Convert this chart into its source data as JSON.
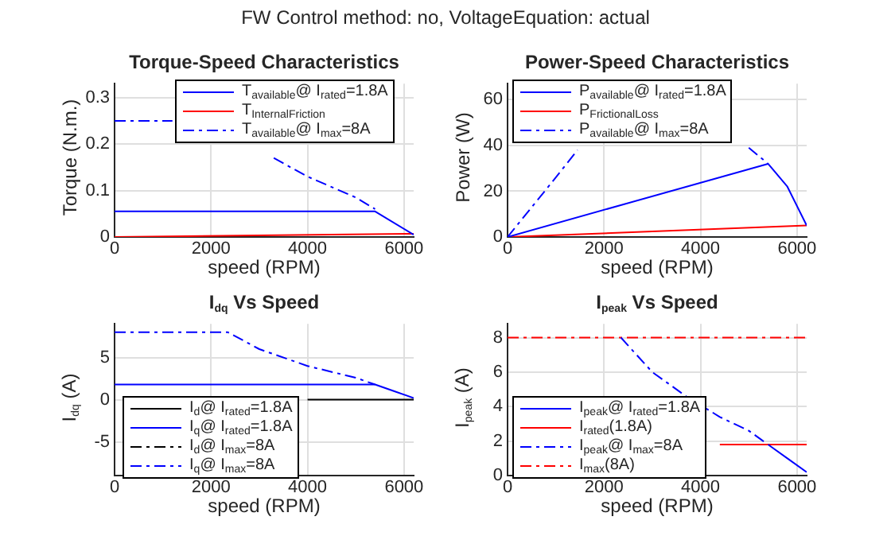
{
  "chart_data": [
    {
      "type": "line",
      "title": "Torque-Speed Characteristics",
      "xlabel": "speed (RPM)",
      "ylabel": "Torque (N.m.)",
      "annotations": [
        "FW Control method: no, VoltageEquation: actual"
      ],
      "xlim": [
        0,
        6200
      ],
      "xticks": [
        0,
        2000,
        4000,
        6000
      ],
      "ylim": [
        0,
        0.33
      ],
      "yticks": [
        0,
        0.1,
        0.2,
        0.3
      ],
      "grid": true,
      "legend": "top right",
      "marker": "none",
      "series": [
        {
          "name": "T$_{available}$@  I$_{rated}$=1.8A",
          "color": "#0000ff",
          "line_style": "solid",
          "x": [
            0,
            5400,
            6200
          ],
          "values": [
            0.055,
            0.055,
            0.005
          ]
        },
        {
          "name": "T$_{InternalFriction}$",
          "color": "#ff0000",
          "line_style": "solid",
          "x": [
            0,
            6200
          ],
          "values": [
            0,
            0.007
          ]
        },
        {
          "name": "T$_{available}$@  I$_{max}$=8A",
          "color": "#0000ff",
          "line_style": "dashed",
          "x": [
            0,
            1200,
            2350,
            3300,
            4000,
            5000,
            5400
          ],
          "values": [
            0.25,
            0.25,
            null,
            0.17,
            0.13,
            0.085,
            0.06
          ]
        }
      ]
    },
    {
      "type": "line",
      "title": "Power-Speed Characteristics",
      "xlabel": "speed (RPM)",
      "ylabel": "Power (W)",
      "xlim": [
        0,
        6200
      ],
      "xticks": [
        0,
        2000,
        4000,
        6000
      ],
      "ylim": [
        0,
        67
      ],
      "yticks": [
        0,
        20,
        40,
        60
      ],
      "grid": true,
      "legend": "top left",
      "marker": "none",
      "series": [
        {
          "name": "P$_{available}$@  I$_{rated}$=1.8A",
          "color": "#0000ff",
          "line_style": "solid",
          "x": [
            0,
            5400,
            5800,
            6200
          ],
          "values": [
            0,
            32,
            22,
            5
          ]
        },
        {
          "name": "P$_{FrictionalLoss}$",
          "color": "#ff0000",
          "line_style": "solid",
          "x": [
            0,
            6200
          ],
          "values": [
            0,
            5
          ]
        },
        {
          "name": "P$_{available}$@  I$_{max}$=8A",
          "color": "#0000ff",
          "line_style": "dashed",
          "x": [
            0,
            1000,
            1450,
            3000,
            5000,
            5400
          ],
          "values": [
            0,
            26,
            38,
            null,
            39,
            32
          ]
        }
      ]
    },
    {
      "type": "line",
      "title": "I$_{dq}$  Vs  Speed",
      "xlabel": "speed (RPM)",
      "ylabel": "I$_{dq}$  (A)",
      "xlim": [
        0,
        6200
      ],
      "xticks": [
        0,
        2000,
        4000,
        6000
      ],
      "ylim": [
        -9,
        9
      ],
      "yticks": [
        -5,
        0,
        5
      ],
      "grid": true,
      "legend": "bottom left",
      "marker": "none",
      "series": [
        {
          "name": "I$_{d}$@  I$_{rated}$=1.8A",
          "color": "#000000",
          "line_style": "solid",
          "x": [
            4000,
            6200
          ],
          "values": [
            0,
            0
          ]
        },
        {
          "name": "I$_{q}$@  I$_{rated}$=1.8A",
          "color": "#0000ff",
          "line_style": "solid",
          "x": [
            0,
            5400,
            5800,
            6200
          ],
          "values": [
            1.8,
            1.8,
            1.0,
            0.2
          ]
        },
        {
          "name": "I$_{d}$@  I$_{max}$=8A",
          "color": "#000000",
          "line_style": "dashed"
        },
        {
          "name": "I$_{q}$@  I$_{max}$=8A",
          "color": "#0000ff",
          "line_style": "dashed",
          "x": [
            0,
            2350,
            3000,
            4000,
            5000,
            5400
          ],
          "values": [
            8,
            8,
            6,
            4,
            2.6,
            1.8
          ]
        }
      ]
    },
    {
      "type": "line",
      "title": "I$_{peak}$  Vs  Speed",
      "xlabel": "speed (RPM)",
      "ylabel": "I$_{peak}$  (A)",
      "xlim": [
        0,
        6200
      ],
      "xticks": [
        0,
        2000,
        4000,
        6000
      ],
      "ylim": [
        0,
        8.8
      ],
      "yticks": [
        0,
        2,
        4,
        6,
        8
      ],
      "grid": true,
      "legend": "bottom left",
      "marker": "none",
      "series": [
        {
          "name": "I$_{peak}$@  I$_{rated}$=1.8A",
          "color": "#0000ff",
          "line_style": "solid",
          "x": [
            5400,
            5800,
            6200
          ],
          "values": [
            1.8,
            1.0,
            0.2
          ]
        },
        {
          "name": "I$_{rated}$(1.8A)",
          "color": "#ff0000",
          "line_style": "solid",
          "x": [
            4400,
            6200
          ],
          "values": [
            1.8,
            1.8
          ]
        },
        {
          "name": "I$_{peak}$@  I$_{max}$=8A",
          "color": "#0000ff",
          "line_style": "dashed",
          "x": [
            2350,
            3000,
            3700,
            4400,
            5000,
            5400
          ],
          "values": [
            8,
            6,
            4.6,
            3.4,
            2.6,
            1.8
          ]
        },
        {
          "name": "I$_{max}$(8A)",
          "color": "#ff0000",
          "line_style": "dashed",
          "x": [
            0,
            6200
          ],
          "values": [
            8,
            8
          ]
        }
      ]
    }
  ]
}
